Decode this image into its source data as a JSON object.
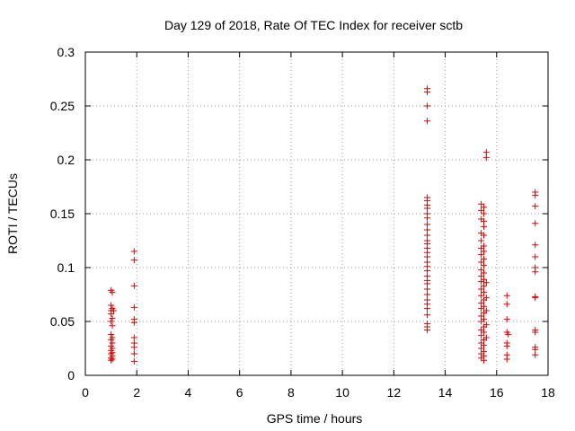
{
  "chart_data": {
    "type": "scatter",
    "title": "Day 129 of 2018, Rate Of TEC Index for receiver sctb",
    "xlabel": "GPS time / hours",
    "ylabel": "ROTI / TECUs",
    "xlim": [
      0,
      18
    ],
    "ylim": [
      0,
      0.3
    ],
    "xticks": [
      0,
      2,
      4,
      6,
      8,
      10,
      12,
      14,
      16,
      18
    ],
    "yticks": [
      0,
      0.05,
      0.1,
      0.15,
      0.2,
      0.25,
      0.3
    ],
    "xtick_labels": [
      "0",
      "2",
      "4",
      "6",
      "8",
      "10",
      "12",
      "14",
      "16",
      "18"
    ],
    "ytick_labels": [
      "0",
      "0.05",
      "0.1",
      "0.15",
      "0.2",
      "0.25",
      "0.3"
    ],
    "grid": true,
    "marker": "+",
    "marker_color": "#e00000",
    "series": [
      {
        "name": "ROTI",
        "points": [
          [
            1.0,
            0.079
          ],
          [
            1.05,
            0.077
          ],
          [
            1.0,
            0.065
          ],
          [
            1.05,
            0.062
          ],
          [
            1.0,
            0.06
          ],
          [
            1.1,
            0.06
          ],
          [
            1.0,
            0.057
          ],
          [
            1.05,
            0.053
          ],
          [
            1.0,
            0.05
          ],
          [
            1.05,
            0.046
          ],
          [
            1.0,
            0.038
          ],
          [
            1.05,
            0.035
          ],
          [
            1.0,
            0.033
          ],
          [
            1.05,
            0.03
          ],
          [
            1.0,
            0.027
          ],
          [
            1.05,
            0.025
          ],
          [
            1.0,
            0.023
          ],
          [
            1.05,
            0.021
          ],
          [
            1.0,
            0.02
          ],
          [
            1.05,
            0.018
          ],
          [
            1.0,
            0.016
          ],
          [
            1.05,
            0.015
          ],
          [
            1.0,
            0.014
          ],
          [
            1.9,
            0.115
          ],
          [
            1.9,
            0.107
          ],
          [
            1.9,
            0.083
          ],
          [
            1.9,
            0.063
          ],
          [
            1.9,
            0.052
          ],
          [
            1.9,
            0.049
          ],
          [
            1.9,
            0.035
          ],
          [
            1.9,
            0.03
          ],
          [
            1.9,
            0.026
          ],
          [
            1.9,
            0.02
          ],
          [
            1.9,
            0.013
          ],
          [
            13.3,
            0.266
          ],
          [
            13.3,
            0.263
          ],
          [
            13.3,
            0.25
          ],
          [
            13.3,
            0.236
          ],
          [
            13.3,
            0.165
          ],
          [
            13.3,
            0.162
          ],
          [
            13.3,
            0.158
          ],
          [
            13.3,
            0.155
          ],
          [
            13.3,
            0.15
          ],
          [
            13.3,
            0.146
          ],
          [
            13.3,
            0.14
          ],
          [
            13.3,
            0.135
          ],
          [
            13.3,
            0.13
          ],
          [
            13.3,
            0.125
          ],
          [
            13.3,
            0.122
          ],
          [
            13.3,
            0.118
          ],
          [
            13.3,
            0.114
          ],
          [
            13.3,
            0.11
          ],
          [
            13.3,
            0.105
          ],
          [
            13.3,
            0.101
          ],
          [
            13.3,
            0.097
          ],
          [
            13.3,
            0.092
          ],
          [
            13.3,
            0.088
          ],
          [
            13.3,
            0.085
          ],
          [
            13.3,
            0.08
          ],
          [
            13.3,
            0.075
          ],
          [
            13.3,
            0.07
          ],
          [
            13.3,
            0.066
          ],
          [
            13.3,
            0.062
          ],
          [
            13.3,
            0.056
          ],
          [
            13.3,
            0.048
          ],
          [
            13.3,
            0.045
          ],
          [
            13.3,
            0.042
          ],
          [
            15.4,
            0.159
          ],
          [
            15.5,
            0.156
          ],
          [
            15.4,
            0.153
          ],
          [
            15.5,
            0.15
          ],
          [
            15.4,
            0.145
          ],
          [
            15.5,
            0.143
          ],
          [
            15.5,
            0.138
          ],
          [
            15.4,
            0.132
          ],
          [
            15.5,
            0.13
          ],
          [
            15.4,
            0.125
          ],
          [
            15.5,
            0.12
          ],
          [
            15.4,
            0.118
          ],
          [
            15.5,
            0.115
          ],
          [
            15.4,
            0.112
          ],
          [
            15.5,
            0.108
          ],
          [
            15.4,
            0.105
          ],
          [
            15.5,
            0.102
          ],
          [
            15.4,
            0.098
          ],
          [
            15.5,
            0.095
          ],
          [
            15.4,
            0.092
          ],
          [
            15.5,
            0.089
          ],
          [
            15.4,
            0.087
          ],
          [
            15.6,
            0.086
          ],
          [
            15.5,
            0.083
          ],
          [
            15.4,
            0.08
          ],
          [
            15.5,
            0.077
          ],
          [
            15.4,
            0.074
          ],
          [
            15.6,
            0.072
          ],
          [
            15.5,
            0.07
          ],
          [
            15.4,
            0.067
          ],
          [
            15.5,
            0.064
          ],
          [
            15.4,
            0.062
          ],
          [
            15.6,
            0.06
          ],
          [
            15.5,
            0.058
          ],
          [
            15.4,
            0.055
          ],
          [
            15.5,
            0.052
          ],
          [
            15.4,
            0.05
          ],
          [
            15.6,
            0.047
          ],
          [
            15.5,
            0.045
          ],
          [
            15.4,
            0.042
          ],
          [
            15.5,
            0.04
          ],
          [
            15.4,
            0.037
          ],
          [
            15.6,
            0.035
          ],
          [
            15.5,
            0.033
          ],
          [
            15.4,
            0.03
          ],
          [
            15.5,
            0.028
          ],
          [
            15.4,
            0.025
          ],
          [
            15.5,
            0.022
          ],
          [
            15.4,
            0.02
          ],
          [
            15.5,
            0.018
          ],
          [
            15.4,
            0.016
          ],
          [
            15.5,
            0.014
          ],
          [
            15.6,
            0.207
          ],
          [
            15.6,
            0.202
          ],
          [
            16.4,
            0.074
          ],
          [
            16.4,
            0.066
          ],
          [
            16.4,
            0.052
          ],
          [
            16.4,
            0.04
          ],
          [
            16.45,
            0.038
          ],
          [
            16.4,
            0.03
          ],
          [
            16.4,
            0.027
          ],
          [
            16.4,
            0.019
          ],
          [
            16.4,
            0.015
          ],
          [
            17.5,
            0.17
          ],
          [
            17.5,
            0.167
          ],
          [
            17.5,
            0.157
          ],
          [
            17.5,
            0.141
          ],
          [
            17.5,
            0.121
          ],
          [
            17.5,
            0.11
          ],
          [
            17.5,
            0.1
          ],
          [
            17.5,
            0.096
          ],
          [
            17.5,
            0.073
          ],
          [
            17.5,
            0.072
          ],
          [
            17.5,
            0.042
          ],
          [
            17.5,
            0.04
          ],
          [
            17.5,
            0.026
          ],
          [
            17.5,
            0.024
          ],
          [
            17.5,
            0.019
          ]
        ]
      }
    ]
  }
}
